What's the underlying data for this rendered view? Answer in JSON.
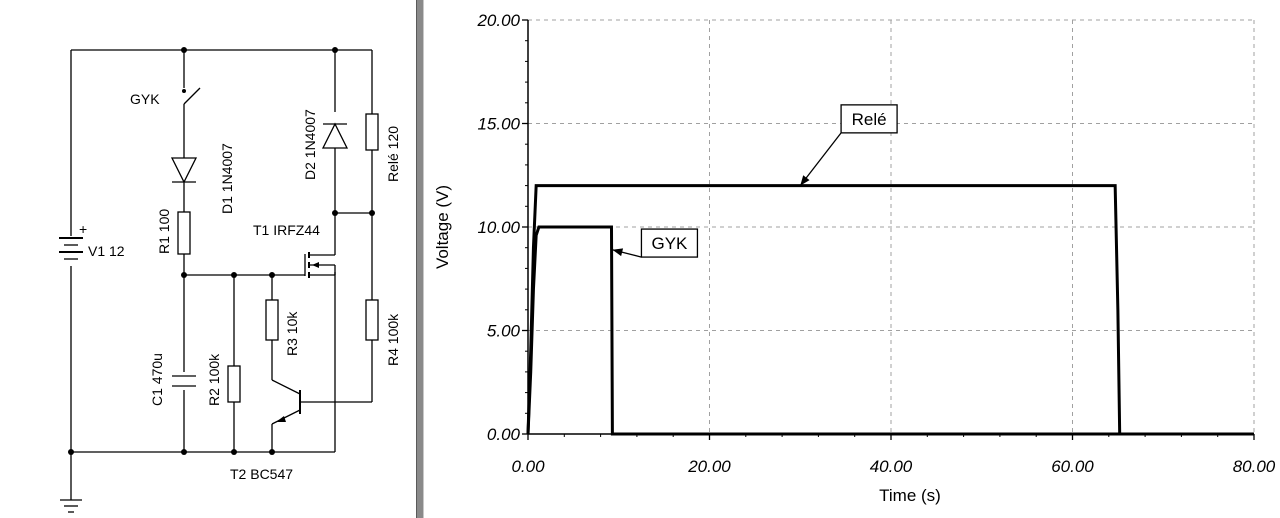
{
  "schematic": {
    "labels": {
      "v1": "V1 12",
      "v1_plus": "+",
      "gyk": "GYK",
      "d1": "D1 1N4007",
      "r1": "R1 100",
      "c1": "C1 470u",
      "r2": "R2 100k",
      "t1": "T1 IRFZ44",
      "r3": "R3 10k",
      "d2": "D2 1N4007",
      "rele": "Relé 120",
      "r4": "R4 100k",
      "t2": "T2 BC547"
    }
  },
  "chart_data": {
    "type": "line",
    "xlabel": "Time (s)",
    "ylabel": "Voltage (V)",
    "xlim": [
      0,
      80
    ],
    "ylim": [
      0,
      20
    ],
    "x_ticks": [
      "0.00",
      "20.00",
      "40.00",
      "60.00",
      "80.00"
    ],
    "y_ticks": [
      "0.00",
      "5.00",
      "10.00",
      "15.00",
      "20.00"
    ],
    "grid": true,
    "series": [
      {
        "name": "Relé",
        "points": [
          [
            0,
            0
          ],
          [
            0.3,
            4
          ],
          [
            0.6,
            9
          ],
          [
            0.9,
            12
          ],
          [
            64.7,
            12
          ],
          [
            65,
            6
          ],
          [
            65.2,
            0
          ],
          [
            80,
            0
          ]
        ]
      },
      {
        "name": "GYK",
        "points": [
          [
            0,
            0
          ],
          [
            0.3,
            3
          ],
          [
            0.6,
            7
          ],
          [
            0.9,
            9.6
          ],
          [
            1.2,
            10
          ],
          [
            9.2,
            10
          ],
          [
            9.3,
            0
          ],
          [
            80,
            0
          ]
        ]
      }
    ],
    "annotations": [
      "Relé",
      "GYK"
    ]
  }
}
